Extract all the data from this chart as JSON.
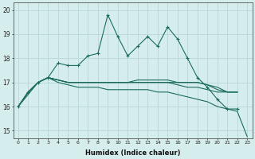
{
  "xlabel": "Humidex (Indice chaleur)",
  "ylabel": "",
  "xlim": [
    -0.5,
    23.5
  ],
  "ylim": [
    14.7,
    20.3
  ],
  "yticks": [
    15,
    16,
    17,
    18,
    19,
    20
  ],
  "xticks": [
    0,
    1,
    2,
    3,
    4,
    5,
    6,
    7,
    8,
    9,
    10,
    11,
    12,
    13,
    14,
    15,
    16,
    17,
    18,
    19,
    20,
    21,
    22,
    23
  ],
  "bg_color": "#d5eeed",
  "grid_color": "#b8d8d4",
  "line_color": "#1a6b5c",
  "series": [
    [
      16.0,
      16.6,
      17.0,
      17.2,
      17.8,
      17.7,
      17.7,
      18.1,
      18.2,
      19.8,
      18.9,
      18.1,
      18.5,
      18.9,
      18.5,
      19.3,
      18.8,
      18.0,
      17.2,
      16.8,
      16.3,
      15.9,
      15.9,
      null
    ],
    [
      16.0,
      16.6,
      17.0,
      17.2,
      17.1,
      17.0,
      17.0,
      17.0,
      17.0,
      17.0,
      17.0,
      17.0,
      17.0,
      17.0,
      17.0,
      17.0,
      17.0,
      17.0,
      17.0,
      16.9,
      16.8,
      16.6,
      16.6,
      null
    ],
    [
      16.0,
      16.6,
      17.0,
      17.2,
      17.1,
      17.0,
      17.0,
      17.0,
      17.0,
      17.0,
      17.0,
      17.0,
      17.1,
      17.1,
      17.1,
      17.1,
      17.0,
      17.0,
      17.0,
      16.9,
      16.7,
      16.6,
      16.6,
      null
    ],
    [
      16.0,
      16.6,
      17.0,
      17.2,
      17.1,
      17.0,
      17.0,
      17.0,
      17.0,
      17.0,
      17.0,
      17.0,
      17.0,
      17.0,
      17.0,
      17.0,
      16.9,
      16.8,
      16.8,
      16.7,
      16.6,
      16.6,
      16.6,
      null
    ],
    [
      16.0,
      16.5,
      17.0,
      17.2,
      17.0,
      16.9,
      16.8,
      16.8,
      16.8,
      16.7,
      16.7,
      16.7,
      16.7,
      16.7,
      16.6,
      16.6,
      16.5,
      16.4,
      16.3,
      16.2,
      16.0,
      15.9,
      15.8,
      14.75
    ]
  ],
  "markers": [
    true,
    false,
    false,
    false,
    false
  ],
  "colors": [
    "#1a6b5c",
    "#1a6b5c",
    "#1a6b5c",
    "#1a6b5c",
    "#1a6b5c"
  ]
}
